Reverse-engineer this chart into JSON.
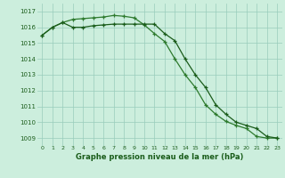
{
  "x": [
    0,
    1,
    2,
    3,
    4,
    5,
    6,
    7,
    8,
    9,
    10,
    11,
    12,
    13,
    14,
    15,
    16,
    17,
    18,
    19,
    20,
    21,
    22,
    23
  ],
  "line1": [
    1015.5,
    1016.0,
    1016.3,
    1016.0,
    1016.0,
    1016.1,
    1016.15,
    1016.2,
    1016.2,
    1016.2,
    1016.2,
    1016.2,
    1015.6,
    1015.15,
    1014.0,
    1013.0,
    1012.2,
    1011.1,
    1010.5,
    1010.0,
    1009.8,
    1009.6,
    1009.1,
    1009.0
  ],
  "line2": [
    1015.5,
    1016.0,
    1016.3,
    1016.5,
    1016.55,
    1016.6,
    1016.65,
    1016.75,
    1016.7,
    1016.6,
    1016.15,
    1015.6,
    1015.1,
    1014.0,
    1013.0,
    1012.2,
    1011.1,
    1010.5,
    1010.05,
    1009.8,
    1009.6,
    1009.1,
    1009.0,
    1009.0
  ],
  "line1_color": "#1a5c1a",
  "line2_color": "#2d7a2d",
  "bg_color": "#cceedd",
  "tick_color": "#1a5c1a",
  "grid_color": "#99ccbb",
  "xlabel_text_color": "#1a5c1a",
  "ylim": [
    1008.5,
    1017.5
  ],
  "xlim": [
    -0.5,
    23.5
  ],
  "yticks": [
    1009,
    1010,
    1011,
    1012,
    1013,
    1014,
    1015,
    1016,
    1017
  ],
  "xticks": [
    0,
    1,
    2,
    3,
    4,
    5,
    6,
    7,
    8,
    9,
    10,
    11,
    12,
    13,
    14,
    15,
    16,
    17,
    18,
    19,
    20,
    21,
    22,
    23
  ],
  "xlabel": "Graphe pression niveau de la mer (hPa)"
}
